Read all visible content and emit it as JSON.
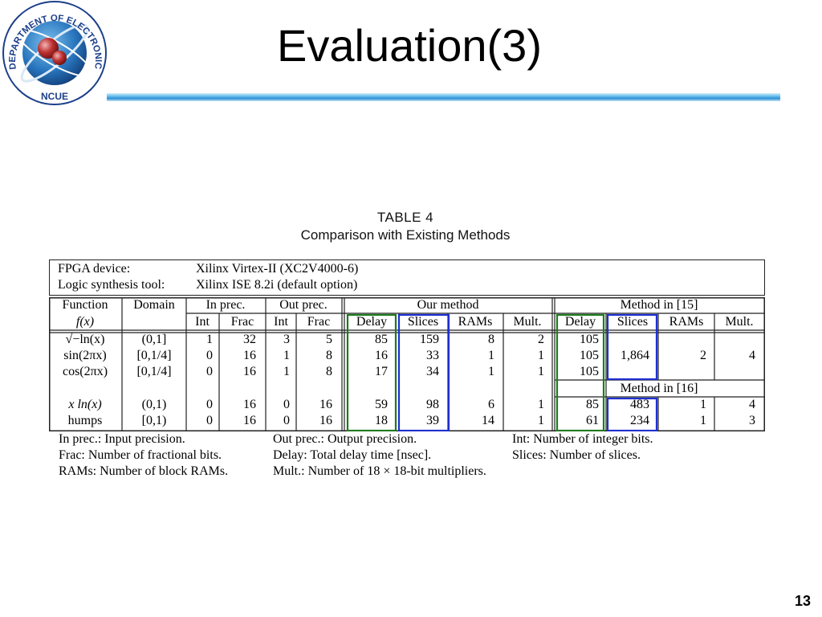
{
  "slide": {
    "title": "Evaluation(3)",
    "page_number": "13",
    "logo": {
      "arc_text": "DEPARTMENT OF ELECTRONIC ENGINEERING",
      "short_name": "NCUE"
    }
  },
  "table": {
    "caption_line1": "TABLE 4",
    "caption_line2": "Comparison with Existing Methods",
    "device": {
      "fpga_label": "FPGA device:",
      "fpga_value": "Xilinx Virtex-II (XC2V4000-6)",
      "synth_label": "Logic synthesis tool:",
      "synth_value": "Xilinx ISE 8.2i (default option)"
    },
    "headers": {
      "function": "Function",
      "fx": "f(x)",
      "domain": "Domain",
      "in_prec": "In prec.",
      "out_prec": "Out prec.",
      "our_method": "Our method",
      "method15": "Method in [15]",
      "method16": "Method in [16]",
      "int": "Int",
      "frac": "Frac",
      "delay": "Delay",
      "slices": "Slices",
      "rams": "RAMs",
      "mult": "Mult."
    },
    "rows": [
      {
        "function": "√−ln(x)",
        "domain": "(0,1]",
        "in_int": "1",
        "in_frac": "32",
        "out_int": "3",
        "out_frac": "5",
        "our_delay": "85",
        "our_slices": "159",
        "our_rams": "8",
        "our_mult": "2",
        "ref_delay": "105"
      },
      {
        "function": "sin(2πx)",
        "domain": "[0,1/4]",
        "in_int": "0",
        "in_frac": "16",
        "out_int": "1",
        "out_frac": "8",
        "our_delay": "16",
        "our_slices": "33",
        "our_rams": "1",
        "our_mult": "1",
        "ref_delay": "105"
      },
      {
        "function": "cos(2πx)",
        "domain": "[0,1/4]",
        "in_int": "0",
        "in_frac": "16",
        "out_int": "1",
        "out_frac": "8",
        "our_delay": "17",
        "our_slices": "34",
        "our_rams": "1",
        "our_mult": "1",
        "ref_delay": "105"
      },
      {
        "function": "x ln(x)",
        "domain": "(0,1)",
        "in_int": "0",
        "in_frac": "16",
        "out_int": "0",
        "out_frac": "16",
        "our_delay": "59",
        "our_slices": "98",
        "our_rams": "6",
        "our_mult": "1",
        "ref_delay": "85",
        "ref_slices": "483",
        "ref_rams": "1",
        "ref_mult": "4"
      },
      {
        "function": "humps",
        "domain": "[0,1)",
        "in_int": "0",
        "in_frac": "16",
        "out_int": "0",
        "out_frac": "16",
        "our_delay": "18",
        "our_slices": "39",
        "our_rams": "14",
        "our_mult": "1",
        "ref_delay": "61",
        "ref_slices": "234",
        "ref_rams": "1",
        "ref_mult": "3"
      }
    ],
    "method15_shared": {
      "slices": "1,864",
      "rams": "2",
      "mult": "4"
    },
    "legend": {
      "in_prec": "In prec.: Input precision.",
      "out_prec": "Out prec.: Output precision.",
      "int": "Int: Number of integer bits.",
      "frac": "Frac: Number of fractional bits.",
      "delay": "Delay: Total delay time [nsec].",
      "slices": "Slices: Number of slices.",
      "rams": "RAMs: Number of block RAMs.",
      "mult": "Mult.: Number of 18 × 18-bit multipliers."
    },
    "highlight_colors": {
      "green": "#1f7a1f",
      "blue": "#1f2fd0"
    }
  }
}
